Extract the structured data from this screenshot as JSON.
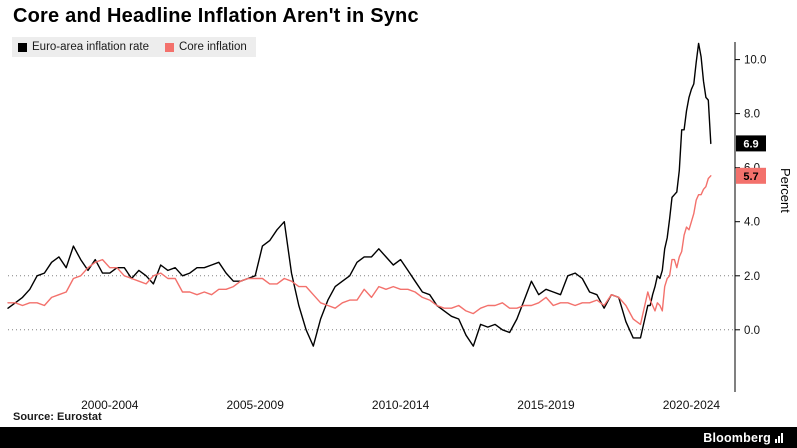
{
  "page": {
    "title": "Core and Headline Inflation Aren't in Sync"
  },
  "footer": {
    "source": "Source: Eurostat",
    "brand": "Bloomberg"
  },
  "chart_data": {
    "type": "line",
    "title": "Core and Headline Inflation Aren't in Sync",
    "xlabel": "",
    "ylabel": "Percent",
    "xlim": [
      1999,
      2024
    ],
    "ylim": [
      -2.3,
      10.65
    ],
    "grid": "dotted horizontal at 0 and 2 only",
    "grid_values": [
      0,
      2
    ],
    "legend_position": "top-left",
    "yticks": [
      {
        "v": 0,
        "label": "0.0"
      },
      {
        "v": 2,
        "label": "2.0"
      },
      {
        "v": 4,
        "label": "4.0"
      },
      {
        "v": 6,
        "label": "6.0"
      },
      {
        "v": 8,
        "label": "8.0"
      },
      {
        "v": 10,
        "label": "10.0"
      }
    ],
    "xticks": [
      {
        "v": 2002.5,
        "label": "2000-2004"
      },
      {
        "v": 2007.5,
        "label": "2005-2009"
      },
      {
        "v": 2012.5,
        "label": "2010-2014"
      },
      {
        "v": 2017.5,
        "label": "2015-2019"
      },
      {
        "v": 2022.5,
        "label": "2020-2024"
      }
    ],
    "series": [
      {
        "name": "Euro-area inflation rate",
        "color": "#000000",
        "end_label": {
          "text": "6.9",
          "bg": "#000000",
          "fg": "#ffffff"
        },
        "points": [
          [
            1999,
            0.8
          ],
          [
            1999.25,
            1
          ],
          [
            1999.5,
            1.2
          ],
          [
            1999.75,
            1.5
          ],
          [
            2000,
            2
          ],
          [
            2000.25,
            2.1
          ],
          [
            2000.5,
            2.5
          ],
          [
            2000.75,
            2.7
          ],
          [
            2001,
            2.3
          ],
          [
            2001.25,
            3.1
          ],
          [
            2001.5,
            2.6
          ],
          [
            2001.75,
            2.2
          ],
          [
            2002,
            2.6
          ],
          [
            2002.25,
            2.1
          ],
          [
            2002.5,
            2.1
          ],
          [
            2002.75,
            2.3
          ],
          [
            2003,
            2.3
          ],
          [
            2003.25,
            1.9
          ],
          [
            2003.5,
            2.2
          ],
          [
            2003.75,
            2
          ],
          [
            2004,
            1.7
          ],
          [
            2004.25,
            2.4
          ],
          [
            2004.5,
            2.2
          ],
          [
            2004.75,
            2.3
          ],
          [
            2005,
            2
          ],
          [
            2005.25,
            2.1
          ],
          [
            2005.5,
            2.3
          ],
          [
            2005.75,
            2.3
          ],
          [
            2006,
            2.4
          ],
          [
            2006.25,
            2.5
          ],
          [
            2006.5,
            2.1
          ],
          [
            2006.75,
            1.8
          ],
          [
            2007,
            1.8
          ],
          [
            2007.25,
            1.9
          ],
          [
            2007.5,
            2
          ],
          [
            2007.75,
            3.1
          ],
          [
            2008,
            3.3
          ],
          [
            2008.25,
            3.7
          ],
          [
            2008.5,
            4
          ],
          [
            2008.75,
            2.1
          ],
          [
            2009,
            0.9
          ],
          [
            2009.25,
            0
          ],
          [
            2009.5,
            -0.6
          ],
          [
            2009.75,
            0.4
          ],
          [
            2010,
            1.1
          ],
          [
            2010.25,
            1.6
          ],
          [
            2010.5,
            1.8
          ],
          [
            2010.75,
            2
          ],
          [
            2011,
            2.5
          ],
          [
            2011.25,
            2.7
          ],
          [
            2011.5,
            2.7
          ],
          [
            2011.75,
            3
          ],
          [
            2012,
            2.7
          ],
          [
            2012.25,
            2.4
          ],
          [
            2012.5,
            2.6
          ],
          [
            2012.75,
            2.2
          ],
          [
            2013,
            1.8
          ],
          [
            2013.25,
            1.4
          ],
          [
            2013.5,
            1.3
          ],
          [
            2013.75,
            0.9
          ],
          [
            2014,
            0.7
          ],
          [
            2014.25,
            0.5
          ],
          [
            2014.5,
            0.4
          ],
          [
            2014.75,
            -0.2
          ],
          [
            2015,
            -0.6
          ],
          [
            2015.25,
            0.2
          ],
          [
            2015.5,
            0.1
          ],
          [
            2015.75,
            0.2
          ],
          [
            2016,
            0
          ],
          [
            2016.25,
            -0.1
          ],
          [
            2016.5,
            0.4
          ],
          [
            2016.75,
            1.1
          ],
          [
            2017,
            1.8
          ],
          [
            2017.25,
            1.3
          ],
          [
            2017.5,
            1.5
          ],
          [
            2017.75,
            1.4
          ],
          [
            2018,
            1.3
          ],
          [
            2018.25,
            2
          ],
          [
            2018.5,
            2.1
          ],
          [
            2018.75,
            1.9
          ],
          [
            2019,
            1.4
          ],
          [
            2019.25,
            1.3
          ],
          [
            2019.5,
            0.8
          ],
          [
            2019.75,
            1.3
          ],
          [
            2020,
            1.2
          ],
          [
            2020.25,
            0.3
          ],
          [
            2020.5,
            -0.3
          ],
          [
            2020.75,
            -0.3
          ],
          [
            2021,
            0.9
          ],
          [
            2021.083,
            0.9
          ],
          [
            2021.167,
            1.3
          ],
          [
            2021.25,
            1.6
          ],
          [
            2021.333,
            2
          ],
          [
            2021.417,
            1.9
          ],
          [
            2021.5,
            2.2
          ],
          [
            2021.583,
            3
          ],
          [
            2021.667,
            3.4
          ],
          [
            2021.75,
            4.1
          ],
          [
            2021.833,
            4.9
          ],
          [
            2021.917,
            5
          ],
          [
            2022,
            5.1
          ],
          [
            2022.083,
            5.9
          ],
          [
            2022.167,
            7.4
          ],
          [
            2022.25,
            7.4
          ],
          [
            2022.333,
            8.1
          ],
          [
            2022.417,
            8.6
          ],
          [
            2022.5,
            8.9
          ],
          [
            2022.583,
            9.1
          ],
          [
            2022.667,
            9.9
          ],
          [
            2022.75,
            10.6
          ],
          [
            2022.833,
            10.1
          ],
          [
            2022.917,
            9.2
          ],
          [
            2023,
            8.6
          ],
          [
            2023.083,
            8.5
          ],
          [
            2023.167,
            6.9
          ]
        ]
      },
      {
        "name": "Core inflation",
        "color": "#f3716c",
        "end_label": {
          "text": "5.7",
          "bg": "#f3716c",
          "fg": "#000000"
        },
        "points": [
          [
            1999,
            1
          ],
          [
            1999.25,
            1
          ],
          [
            1999.5,
            0.9
          ],
          [
            1999.75,
            1
          ],
          [
            2000,
            1
          ],
          [
            2000.25,
            0.9
          ],
          [
            2000.5,
            1.2
          ],
          [
            2000.75,
            1.3
          ],
          [
            2001,
            1.4
          ],
          [
            2001.25,
            1.9
          ],
          [
            2001.5,
            2
          ],
          [
            2001.75,
            2.3
          ],
          [
            2002,
            2.5
          ],
          [
            2002.25,
            2.6
          ],
          [
            2002.5,
            2.3
          ],
          [
            2002.75,
            2.3
          ],
          [
            2003,
            2
          ],
          [
            2003.25,
            1.9
          ],
          [
            2003.5,
            1.8
          ],
          [
            2003.75,
            1.7
          ],
          [
            2004,
            2
          ],
          [
            2004.25,
            2.1
          ],
          [
            2004.5,
            1.9
          ],
          [
            2004.75,
            1.9
          ],
          [
            2005,
            1.4
          ],
          [
            2005.25,
            1.4
          ],
          [
            2005.5,
            1.3
          ],
          [
            2005.75,
            1.4
          ],
          [
            2006,
            1.3
          ],
          [
            2006.25,
            1.5
          ],
          [
            2006.5,
            1.5
          ],
          [
            2006.75,
            1.6
          ],
          [
            2007,
            1.8
          ],
          [
            2007.25,
            1.9
          ],
          [
            2007.5,
            1.9
          ],
          [
            2007.75,
            1.9
          ],
          [
            2008,
            1.7
          ],
          [
            2008.25,
            1.7
          ],
          [
            2008.5,
            1.9
          ],
          [
            2008.75,
            1.8
          ],
          [
            2009,
            1.6
          ],
          [
            2009.25,
            1.6
          ],
          [
            2009.5,
            1.3
          ],
          [
            2009.75,
            1
          ],
          [
            2010,
            0.9
          ],
          [
            2010.25,
            0.8
          ],
          [
            2010.5,
            1
          ],
          [
            2010.75,
            1.1
          ],
          [
            2011,
            1.1
          ],
          [
            2011.25,
            1.5
          ],
          [
            2011.5,
            1.2
          ],
          [
            2011.75,
            1.6
          ],
          [
            2012,
            1.5
          ],
          [
            2012.25,
            1.6
          ],
          [
            2012.5,
            1.5
          ],
          [
            2012.75,
            1.5
          ],
          [
            2013,
            1.4
          ],
          [
            2013.25,
            1.2
          ],
          [
            2013.5,
            1.1
          ],
          [
            2013.75,
            0.9
          ],
          [
            2014,
            0.8
          ],
          [
            2014.25,
            0.8
          ],
          [
            2014.5,
            0.9
          ],
          [
            2014.75,
            0.7
          ],
          [
            2015,
            0.6
          ],
          [
            2015.25,
            0.8
          ],
          [
            2015.5,
            0.9
          ],
          [
            2015.75,
            0.9
          ],
          [
            2016,
            1
          ],
          [
            2016.25,
            0.8
          ],
          [
            2016.5,
            0.8
          ],
          [
            2016.75,
            0.9
          ],
          [
            2017,
            0.9
          ],
          [
            2017.25,
            1
          ],
          [
            2017.5,
            1.2
          ],
          [
            2017.75,
            0.9
          ],
          [
            2018,
            1
          ],
          [
            2018.25,
            1
          ],
          [
            2018.5,
            0.9
          ],
          [
            2018.75,
            1
          ],
          [
            2019,
            1
          ],
          [
            2019.25,
            1.1
          ],
          [
            2019.5,
            0.9
          ],
          [
            2019.75,
            1.3
          ],
          [
            2020,
            1.2
          ],
          [
            2020.25,
            0.9
          ],
          [
            2020.5,
            0.4
          ],
          [
            2020.75,
            0.2
          ],
          [
            2021,
            1.4
          ],
          [
            2021.083,
            1.1
          ],
          [
            2021.167,
            0.9
          ],
          [
            2021.25,
            0.7
          ],
          [
            2021.333,
            1
          ],
          [
            2021.417,
            0.9
          ],
          [
            2021.5,
            0.7
          ],
          [
            2021.583,
            1.6
          ],
          [
            2021.667,
            1.9
          ],
          [
            2021.75,
            2
          ],
          [
            2021.833,
            2.6
          ],
          [
            2021.917,
            2.6
          ],
          [
            2022,
            2.3
          ],
          [
            2022.083,
            2.7
          ],
          [
            2022.167,
            2.9
          ],
          [
            2022.25,
            3.5
          ],
          [
            2022.333,
            3.8
          ],
          [
            2022.417,
            3.7
          ],
          [
            2022.5,
            4
          ],
          [
            2022.583,
            4.3
          ],
          [
            2022.667,
            4.8
          ],
          [
            2022.75,
            5
          ],
          [
            2022.833,
            5
          ],
          [
            2022.917,
            5.2
          ],
          [
            2023,
            5.3
          ],
          [
            2023.083,
            5.6
          ],
          [
            2023.167,
            5.7
          ]
        ]
      }
    ]
  }
}
